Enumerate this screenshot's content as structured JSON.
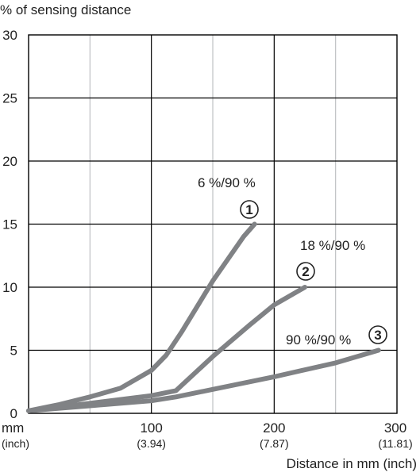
{
  "chart_data": {
    "type": "line",
    "ylabel": "% of sensing distance",
    "xlabel": "Distance in mm (inch)",
    "x_unit_label": "mm",
    "x_unit_sub_label": "(inch)",
    "xlim": [
      0,
      300
    ],
    "ylim": [
      0,
      30
    ],
    "y_ticks": [
      0,
      5,
      10,
      15,
      20,
      25,
      30
    ],
    "x_ticks": [
      {
        "value": 100,
        "label": "100",
        "sub": "(3.94)"
      },
      {
        "value": 200,
        "label": "200",
        "sub": "(7.87)"
      },
      {
        "value": 300,
        "label": "300",
        "sub": "(11.81)"
      }
    ],
    "x_minor_grid": [
      50,
      150,
      250
    ],
    "grid": true,
    "series_color": "#808285",
    "series": [
      {
        "label": "6 %/90 %",
        "marker": "1",
        "points": [
          [
            0,
            0.2
          ],
          [
            25,
            0.7
          ],
          [
            50,
            1.3
          ],
          [
            75,
            2.0
          ],
          [
            100,
            3.4
          ],
          [
            112,
            4.6
          ],
          [
            125,
            6.5
          ],
          [
            150,
            10.5
          ],
          [
            175,
            14.0
          ],
          [
            184,
            15.0
          ]
        ]
      },
      {
        "label": "18 %/90 %",
        "marker": "2",
        "points": [
          [
            0,
            0.2
          ],
          [
            50,
            0.8
          ],
          [
            100,
            1.4
          ],
          [
            120,
            1.8
          ],
          [
            150,
            4.5
          ],
          [
            180,
            7.0
          ],
          [
            200,
            8.6
          ],
          [
            225,
            10.0
          ]
        ]
      },
      {
        "label": "90 %/90 %",
        "marker": "3",
        "points": [
          [
            0,
            0.2
          ],
          [
            50,
            0.6
          ],
          [
            100,
            1.0
          ],
          [
            120,
            1.3
          ],
          [
            150,
            1.9
          ],
          [
            200,
            2.9
          ],
          [
            250,
            4.0
          ],
          [
            285,
            5.0
          ]
        ]
      }
    ]
  }
}
